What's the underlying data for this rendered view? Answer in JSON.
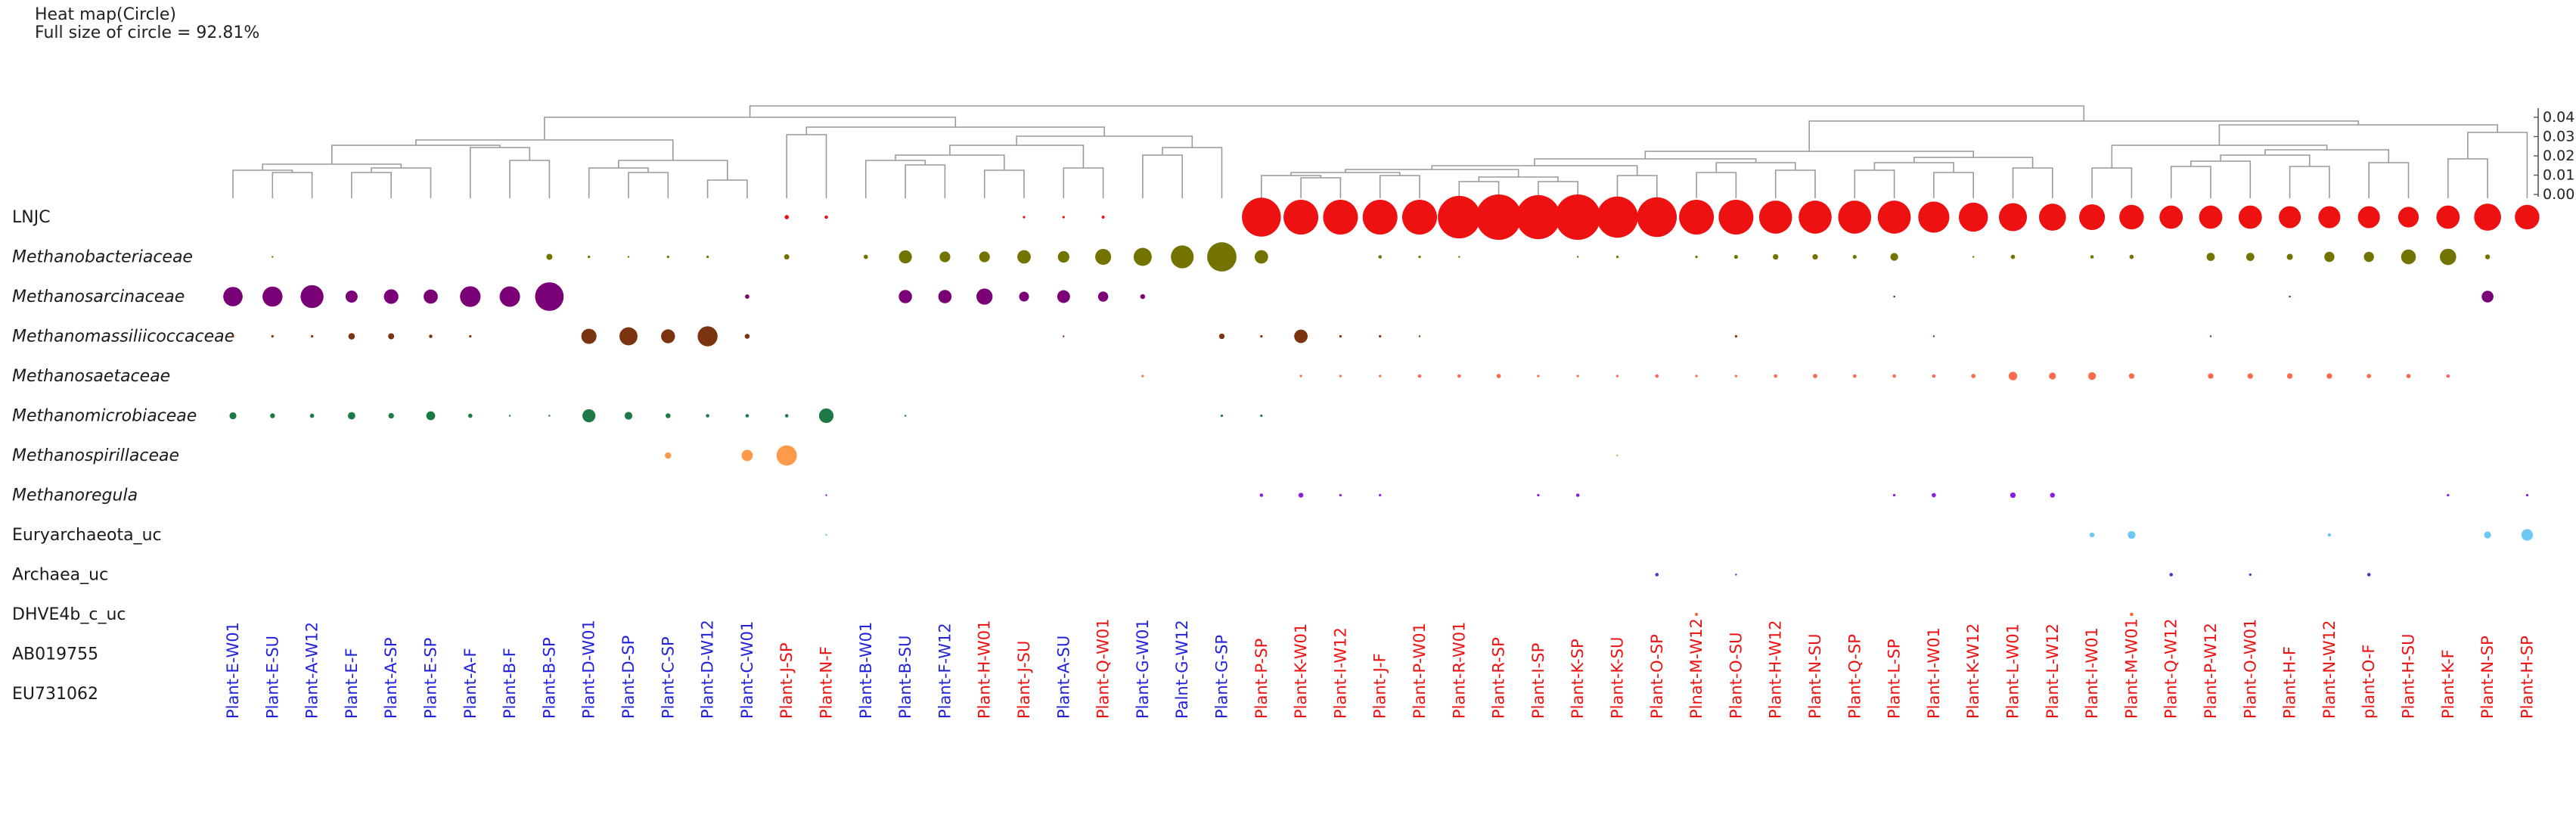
{
  "chart_data": {
    "type": "heatmap",
    "title": "Heat map(Circle)",
    "subtitle": "Full size of circle = 92.81%",
    "max_value": 92.81,
    "scale_ticks": [
      "0.04",
      "0.03",
      "0.02",
      "0.01",
      "0.00"
    ],
    "colors": {
      "group_blue": "#2222dd",
      "group_red": "#ee1111",
      "dendrogram": "#9a9a9a"
    },
    "columns": [
      {
        "label": "Plant-E-W01",
        "group": "blue"
      },
      {
        "label": "Plant-E-SU",
        "group": "blue"
      },
      {
        "label": "Plant-A-W12",
        "group": "blue"
      },
      {
        "label": "Plant-E-F",
        "group": "blue"
      },
      {
        "label": "Plant-A-SP",
        "group": "blue"
      },
      {
        "label": "Plant-E-SP",
        "group": "blue"
      },
      {
        "label": "Plant-A-F",
        "group": "blue"
      },
      {
        "label": "Plant-B-F",
        "group": "blue"
      },
      {
        "label": "Plant-B-SP",
        "group": "blue"
      },
      {
        "label": "Plant-D-W01",
        "group": "blue"
      },
      {
        "label": "Plant-D-SP",
        "group": "blue"
      },
      {
        "label": "Plant-C-SP",
        "group": "blue"
      },
      {
        "label": "Plant-D-W12",
        "group": "blue"
      },
      {
        "label": "Plant-C-W01",
        "group": "blue"
      },
      {
        "label": "Plant-J-SP",
        "group": "red"
      },
      {
        "label": "Plant-N-F",
        "group": "red"
      },
      {
        "label": "Plant-B-W01",
        "group": "blue"
      },
      {
        "label": "Plant-B-SU",
        "group": "blue"
      },
      {
        "label": "Plant-F-W12",
        "group": "blue"
      },
      {
        "label": "Plant-H-W01",
        "group": "red"
      },
      {
        "label": "Plant-J-SU",
        "group": "red"
      },
      {
        "label": "Plant-A-SU",
        "group": "blue"
      },
      {
        "label": "Plant-Q-W01",
        "group": "red"
      },
      {
        "label": "Plant-G-W01",
        "group": "blue"
      },
      {
        "label": "Palnt-G-W12",
        "group": "blue"
      },
      {
        "label": "Plant-G-SP",
        "group": "blue"
      },
      {
        "label": "Plant-P-SP",
        "group": "red"
      },
      {
        "label": "Plant-K-W01",
        "group": "red"
      },
      {
        "label": "Plant-I-W12",
        "group": "red"
      },
      {
        "label": "Plant-J-F",
        "group": "red"
      },
      {
        "label": "Plant-P-W01",
        "group": "red"
      },
      {
        "label": "Plant-R-W01",
        "group": "red"
      },
      {
        "label": "Plant-R-SP",
        "group": "red"
      },
      {
        "label": "Plant-I-SP",
        "group": "red"
      },
      {
        "label": "Plant-K-SP",
        "group": "red"
      },
      {
        "label": "Plant-K-SU",
        "group": "red"
      },
      {
        "label": "Plant-O-SP",
        "group": "red"
      },
      {
        "label": "Plnat-M-W12",
        "group": "red"
      },
      {
        "label": "Plant-O-SU",
        "group": "red"
      },
      {
        "label": "Plant-H-W12",
        "group": "red"
      },
      {
        "label": "Plant-N-SU",
        "group": "red"
      },
      {
        "label": "Plant-Q-SP",
        "group": "red"
      },
      {
        "label": "Plant-L-SP",
        "group": "red"
      },
      {
        "label": "Plant-I-W01",
        "group": "red"
      },
      {
        "label": "Plant-K-W12",
        "group": "red"
      },
      {
        "label": "Plant-L-W01",
        "group": "red"
      },
      {
        "label": "Plant-L-W12",
        "group": "red"
      },
      {
        "label": "Plant-I-W01",
        "group": "red"
      },
      {
        "label": "Plant-M-W01",
        "group": "red"
      },
      {
        "label": "Plant-Q-W12",
        "group": "red"
      },
      {
        "label": "Plant-P-W12",
        "group": "red"
      },
      {
        "label": "Plant-O-W01",
        "group": "red"
      },
      {
        "label": "Plant-H-F",
        "group": "red"
      },
      {
        "label": "Plant-N-W12",
        "group": "red"
      },
      {
        "label": "plant-O-F",
        "group": "red"
      },
      {
        "label": "Plant-H-SU",
        "group": "red"
      },
      {
        "label": "Plant-K-F",
        "group": "red"
      },
      {
        "label": "Plant-N-SP",
        "group": "red"
      },
      {
        "label": "Plant-H-SP",
        "group": "red"
      }
    ],
    "rows": [
      {
        "label": "LNJC",
        "italic": false,
        "color": "#ee1111",
        "values": [
          0,
          0,
          0,
          0,
          0,
          0,
          0,
          0,
          0,
          0,
          0,
          0,
          0,
          0,
          0.3,
          0.2,
          0,
          0,
          0,
          0,
          0.1,
          0.1,
          0.15,
          0,
          0,
          0,
          25,
          20,
          20,
          20,
          20,
          30,
          34,
          32,
          34,
          28,
          26,
          20,
          20,
          18,
          18,
          18,
          18,
          16,
          14,
          13,
          12,
          11,
          10,
          9,
          9,
          9,
          8,
          8,
          8,
          7,
          9,
          12,
          10
        ]
      },
      {
        "label": "Methanobacteriaceae",
        "italic": true,
        "color": "#737300",
        "values": [
          0,
          0.05,
          0,
          0,
          0,
          0,
          0,
          0,
          0.6,
          0.1,
          0.05,
          0.1,
          0.1,
          0,
          0.45,
          0,
          0.3,
          2.8,
          1.9,
          1.9,
          3,
          2.2,
          4.2,
          5.4,
          8.6,
          14.2,
          3,
          0,
          0,
          0.2,
          0.1,
          0.05,
          0,
          0,
          0.05,
          0.1,
          0,
          0.1,
          0.25,
          0.5,
          0.5,
          0.25,
          1,
          0,
          0.05,
          0.3,
          0,
          0.2,
          0.3,
          0,
          1.1,
          1.1,
          0.6,
          1.7,
          1.7,
          3.6,
          4.4,
          0.4,
          0
        ]
      },
      {
        "label": "Methanosarcinaceae",
        "italic": true,
        "color": "#7a0077",
        "values": [
          6.2,
          6.6,
          8.7,
          2.4,
          3.5,
          3.3,
          7,
          6.9,
          13.5,
          0,
          0,
          0,
          0,
          0.3,
          0,
          0,
          0,
          2.9,
          2.9,
          4.3,
          1.6,
          2.7,
          1.7,
          0.4,
          0,
          0,
          0,
          0,
          0,
          0,
          0,
          0,
          0,
          0,
          0,
          0,
          0,
          0,
          0,
          0,
          0,
          0,
          0.05,
          0,
          0,
          0,
          0,
          0,
          0,
          0,
          0,
          0,
          0.05,
          0,
          0,
          0,
          0,
          2.3,
          0
        ]
      },
      {
        "label": "Methanomassiliicoccaceae",
        "italic": true,
        "color": "#7a3410",
        "values": [
          0.1,
          0.1,
          0.1,
          0.7,
          0.6,
          0.2,
          0.1,
          0,
          0,
          3.8,
          5.4,
          3.2,
          6.6,
          0.4,
          0,
          0,
          0,
          0,
          0,
          0,
          0,
          0.05,
          0,
          0,
          0,
          0.5,
          0.1,
          3,
          0.1,
          0.1,
          0.05,
          0,
          0,
          0,
          0,
          0,
          0,
          0,
          0.1,
          0,
          0,
          0,
          0,
          0.05,
          0,
          0,
          0,
          0,
          0,
          0,
          0.05,
          0,
          0,
          0,
          0,
          0,
          0,
          0,
          0
        ]
      },
      {
        "label": "Methanosaetaceae",
        "italic": true,
        "color": "#ff6a4a",
        "values": [
          0,
          0,
          0,
          0,
          0,
          0,
          0,
          0,
          0,
          0,
          0,
          0,
          0,
          0,
          0,
          0,
          0,
          0,
          0,
          0,
          0,
          0,
          0,
          0.1,
          0,
          0,
          0,
          0.1,
          0.1,
          0.1,
          0.2,
          0.2,
          0.3,
          0.1,
          0.1,
          0.1,
          0.2,
          0.1,
          0.1,
          0.2,
          0.3,
          0.2,
          0.2,
          0.2,
          0.3,
          1.2,
          0.8,
          1,
          0.5,
          0,
          0.5,
          0.5,
          0.5,
          0.5,
          0.3,
          0.3,
          0.2,
          0,
          0
        ]
      },
      {
        "label": "Methanomicrobiaceae",
        "italic": true,
        "color": "#1e7a45",
        "values": [
          0.8,
          0.4,
          0.3,
          0.9,
          0.5,
          1.3,
          0.3,
          0.05,
          0.05,
          2.8,
          1,
          0.4,
          0.2,
          0.2,
          0.2,
          3.5,
          0,
          0.05,
          0,
          0,
          0,
          0,
          0,
          0,
          0,
          0.1,
          0.1,
          0,
          0,
          0,
          0,
          0,
          0,
          0,
          0,
          0,
          0,
          0,
          0,
          0,
          0,
          0,
          0,
          0,
          0,
          0,
          0,
          0,
          0,
          0,
          0,
          0,
          0,
          0,
          0,
          0,
          0,
          0,
          0
        ]
      },
      {
        "label": "Methanospirillaceae",
        "italic": true,
        "color": "#ff9a4a",
        "values": [
          0,
          0,
          0,
          0,
          0,
          0,
          0,
          0,
          0,
          0,
          0,
          0.7,
          0,
          2.1,
          6.8,
          0,
          0,
          0,
          0,
          0,
          0,
          0,
          0,
          0,
          0,
          0,
          0,
          0,
          0,
          0,
          0,
          0,
          0,
          0,
          0,
          0.05,
          0,
          0,
          0,
          0,
          0,
          0,
          0,
          0,
          0,
          0,
          0,
          0,
          0,
          0,
          0,
          0,
          0,
          0,
          0,
          0,
          0,
          0,
          0
        ]
      },
      {
        "label": "Methanoregula",
        "italic": true,
        "color": "#8a1ee0",
        "values": [
          0,
          0,
          0,
          0,
          0,
          0,
          0,
          0,
          0,
          0,
          0,
          0,
          0,
          0,
          0,
          0.05,
          0,
          0,
          0,
          0,
          0,
          0,
          0,
          0,
          0,
          0,
          0.2,
          0.4,
          0.1,
          0.1,
          0,
          0,
          0,
          0.1,
          0.2,
          0,
          0,
          0,
          0,
          0,
          0,
          0,
          0.1,
          0.3,
          0,
          0.5,
          0.4,
          0,
          0,
          0,
          0,
          0,
          0,
          0,
          0,
          0,
          0.1,
          0,
          0.1
        ]
      },
      {
        "label": "Euryarchaeota_uc",
        "italic": false,
        "color": "#6ec8f5",
        "values": [
          0,
          0,
          0,
          0,
          0,
          0,
          0,
          0,
          0,
          0,
          0,
          0,
          0,
          0,
          0,
          0.02,
          0,
          0,
          0,
          0,
          0,
          0,
          0,
          0,
          0,
          0,
          0,
          0,
          0,
          0,
          0,
          0,
          0,
          0,
          0,
          0,
          0,
          0,
          0,
          0,
          0,
          0,
          0,
          0,
          0,
          0,
          0,
          0.4,
          1,
          0,
          0,
          0,
          0,
          0.2,
          0,
          0,
          0,
          0.8,
          2.2
        ]
      },
      {
        "label": "Archaea_uc",
        "italic": false,
        "color": "#3a3acc",
        "values": [
          0,
          0,
          0,
          0,
          0,
          0,
          0,
          0,
          0,
          0,
          0,
          0,
          0,
          0,
          0,
          0,
          0,
          0,
          0,
          0,
          0,
          0,
          0,
          0,
          0,
          0,
          0,
          0,
          0,
          0,
          0,
          0,
          0,
          0,
          0,
          0,
          0.2,
          0,
          0.05,
          0,
          0,
          0,
          0,
          0,
          0,
          0,
          0,
          0,
          0,
          0.2,
          0,
          0.1,
          0,
          0,
          0.2,
          0,
          0,
          0,
          0
        ]
      },
      {
        "label": "DHVE4b_c_uc",
        "italic": false,
        "color": "#ff6030",
        "values": [
          0,
          0,
          0,
          0,
          0,
          0,
          0,
          0,
          0,
          0,
          0,
          0,
          0,
          0,
          0,
          0,
          0,
          0,
          0,
          0,
          0,
          0,
          0,
          0,
          0,
          0,
          0,
          0,
          0,
          0,
          0,
          0,
          0,
          0,
          0,
          0,
          0,
          0.15,
          0,
          0,
          0,
          0,
          0,
          0,
          0,
          0,
          0,
          0,
          0.2,
          0,
          0,
          0,
          0,
          0,
          0,
          0,
          0,
          0,
          0
        ]
      },
      {
        "label": "AB019755",
        "italic": false,
        "color": "#999999",
        "values": [
          0,
          0,
          0,
          0,
          0,
          0,
          0,
          0,
          0,
          0,
          0,
          0,
          0,
          0,
          0,
          0,
          0,
          0,
          0,
          0,
          0,
          0,
          0,
          0,
          0,
          0,
          0,
          0,
          0,
          0,
          0,
          0,
          0,
          0,
          0,
          0,
          0,
          0,
          0,
          0,
          0,
          0,
          0,
          0,
          0,
          0,
          0,
          0,
          0,
          0,
          0,
          0,
          0,
          0,
          0,
          0,
          0,
          0,
          0
        ]
      },
      {
        "label": "EU731062",
        "italic": false,
        "color": "#50e0a0",
        "values": [
          0,
          0,
          0,
          0,
          0,
          0,
          0,
          0,
          0,
          0,
          0,
          0,
          0,
          0,
          0,
          0,
          0,
          0,
          0,
          0,
          0,
          0,
          0,
          0,
          0,
          0,
          0,
          0,
          0,
          0,
          0,
          0,
          0,
          0,
          0,
          0,
          0,
          0,
          0,
          0,
          0.05,
          0,
          0,
          0,
          0,
          0,
          0,
          0,
          0,
          0,
          0,
          0,
          0,
          0,
          0,
          0,
          0,
          0,
          0
        ]
      }
    ]
  }
}
